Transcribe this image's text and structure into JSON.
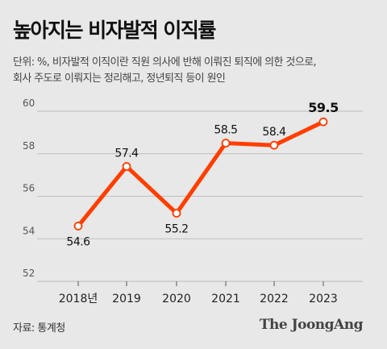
{
  "title": "높아지는 비자발적 이직률",
  "subtitle_lines": [
    "단위: %, 비자발적 이직이란 직원 의사에 반해 이뤄진 퇴직에 의한 것으로,",
    "회사 주도로 이뤄지는 정리해고, 정년퇴직 등이 원인"
  ],
  "source": "자료: 통계청",
  "logo": "The JoongAng",
  "colors": {
    "line": "#ff3d00",
    "grid": "#bdbdbd",
    "background": "#e8e8e8"
  },
  "chart_data": {
    "type": "line",
    "categories": [
      "2018년",
      "2019",
      "2020",
      "2021",
      "2022",
      "2023"
    ],
    "values": [
      54.6,
      57.4,
      55.2,
      58.5,
      58.4,
      59.5
    ],
    "data_labels": [
      "54.6",
      "57.4",
      "55.2",
      "58.5",
      "58.4",
      "59.5"
    ],
    "ylim": [
      52,
      60
    ],
    "yticks": [
      52,
      54,
      56,
      58,
      60
    ],
    "grid": true,
    "highlight_last": true
  }
}
